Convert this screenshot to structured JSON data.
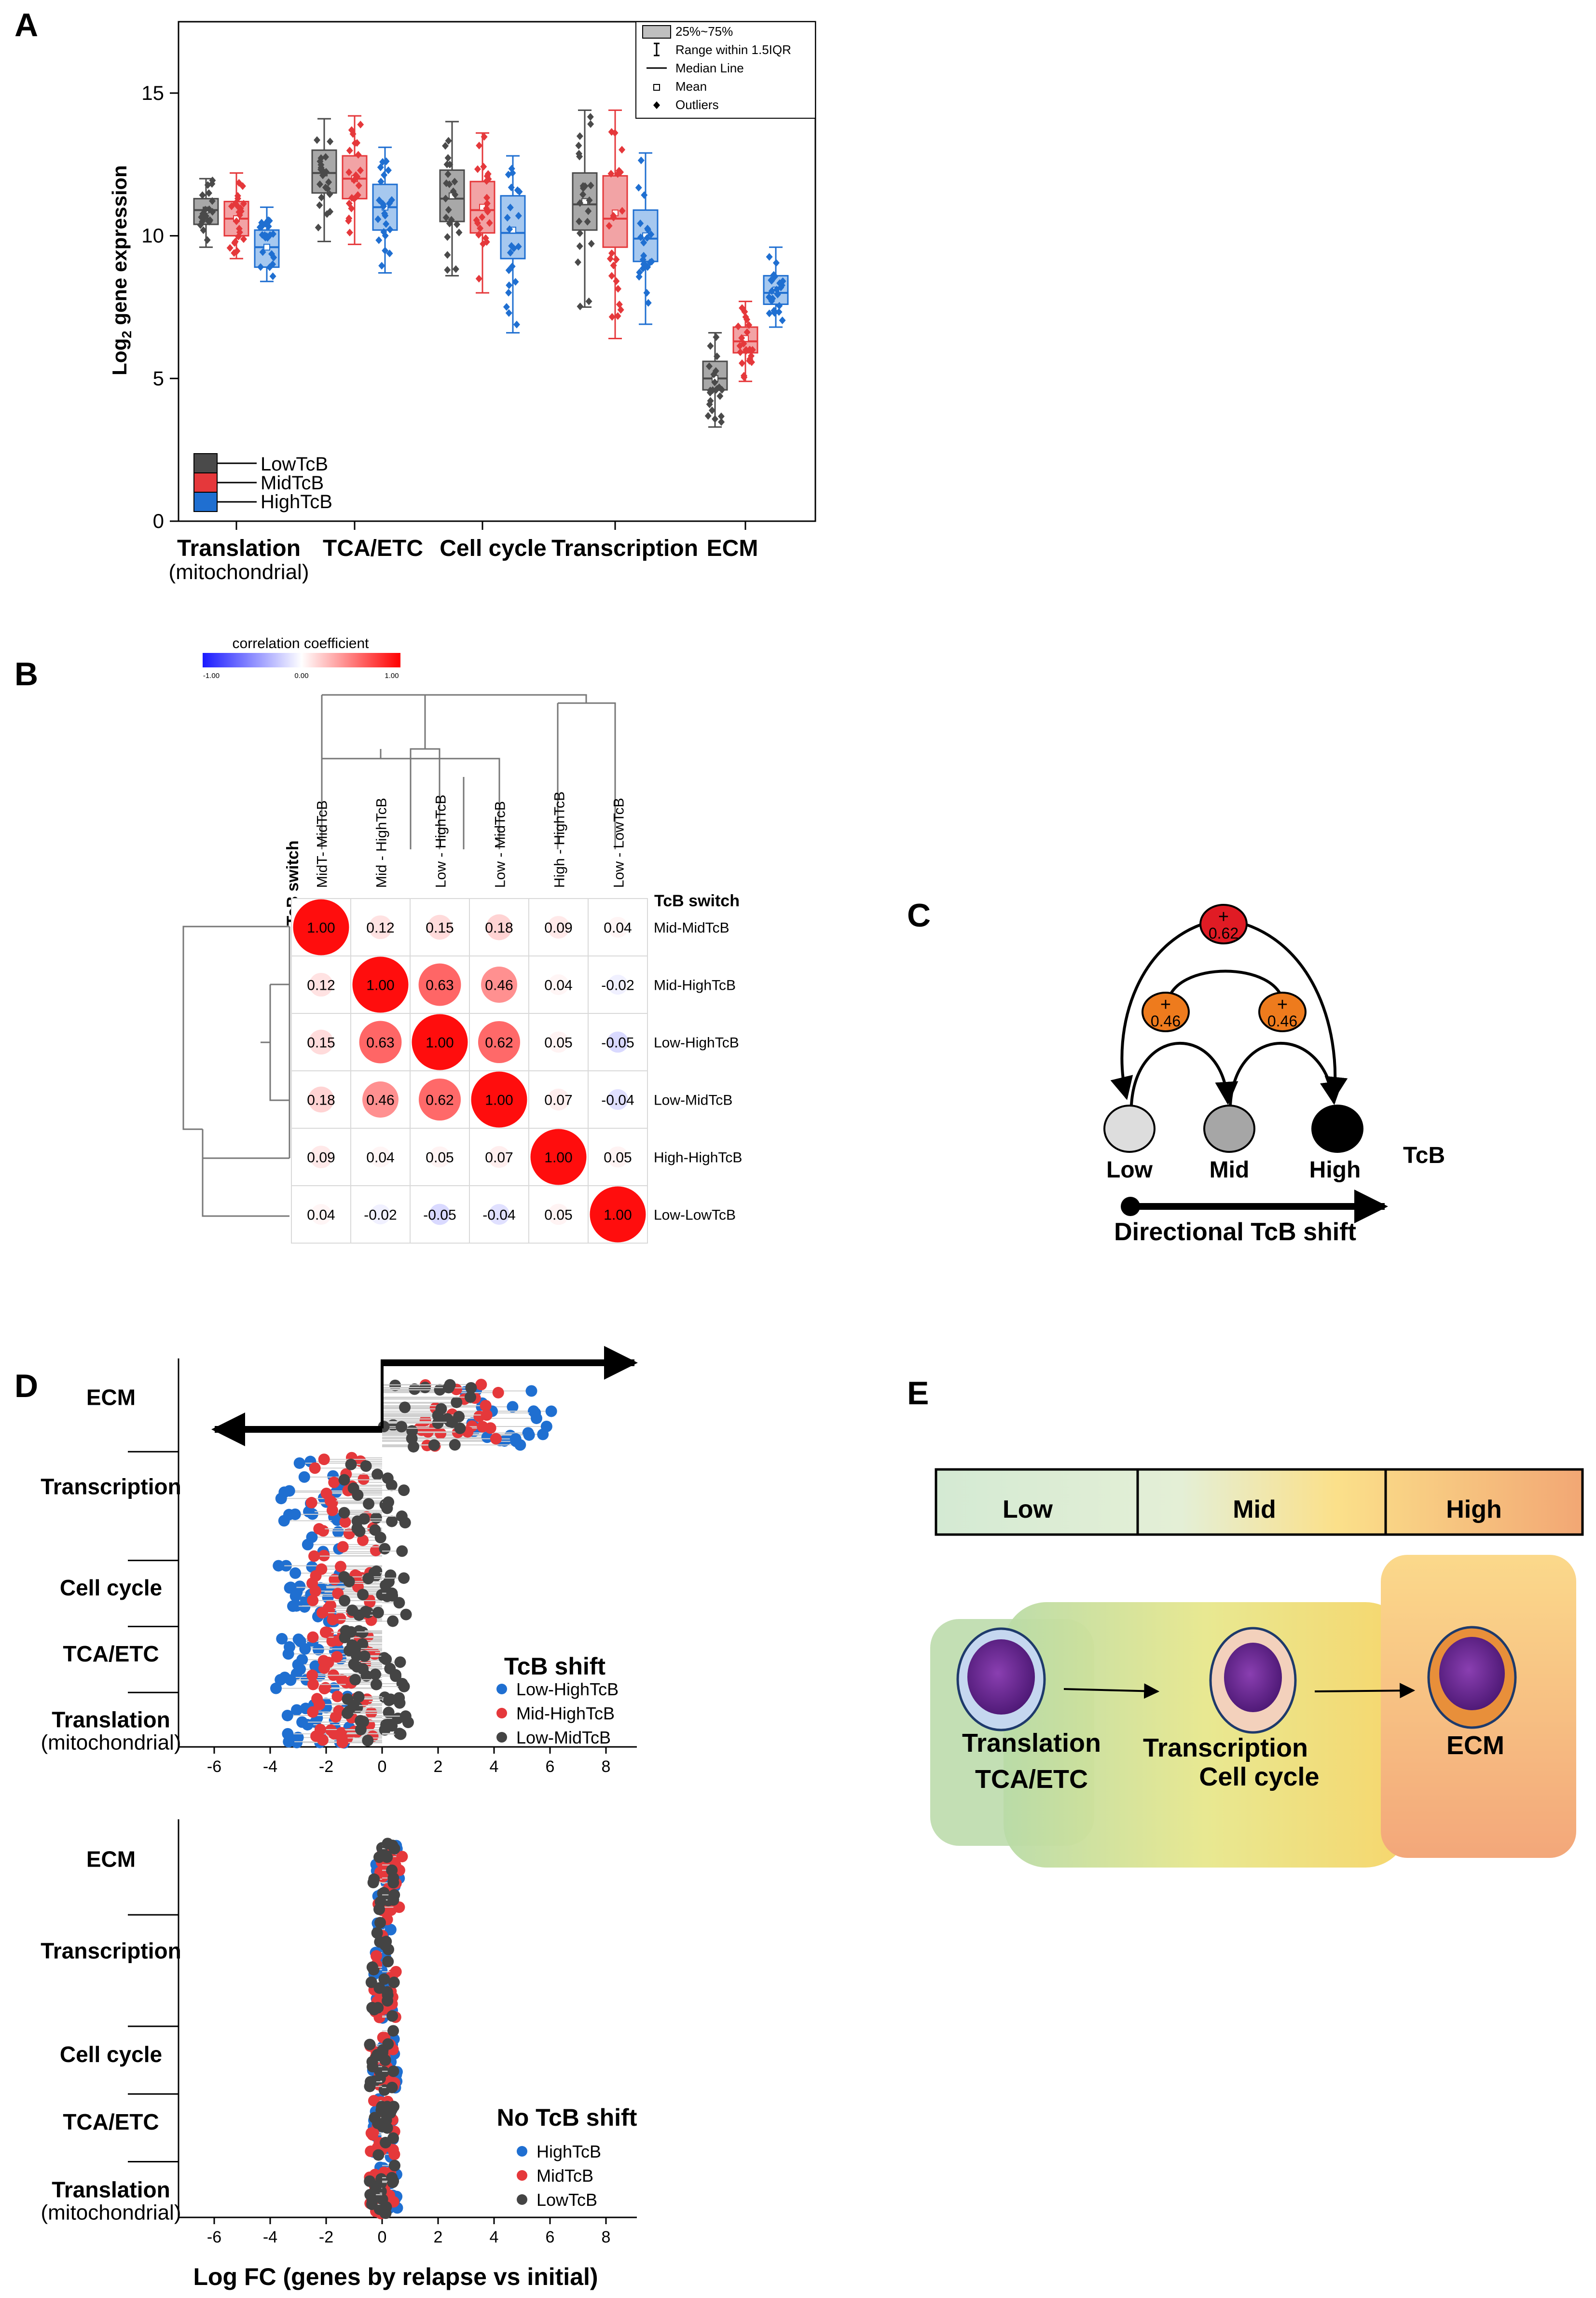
{
  "panels": {
    "a": {
      "letter": "A",
      "chart_data": {
        "type": "box",
        "ylabel": "Log2 gene expression",
        "ylabel_main": "Log",
        "ylabel_sub": "2",
        "ylabel_rest": " gene expression",
        "ylim": [
          0,
          17.5
        ],
        "yticks": [
          "0",
          "5",
          "10",
          "15"
        ],
        "ytick_values": [
          0,
          5,
          10,
          15
        ],
        "categories": [
          "Translation",
          "TCA/ETC",
          "Cell cycle",
          "Transcription",
          "ECM"
        ],
        "category_sublabel": "(mitochondrial)",
        "series": [
          {
            "name": "LowTcB",
            "color": "#4a4a4a",
            "fill": "#a8a8a8",
            "boxes": [
              {
                "q1": 10.4,
                "median": 10.9,
                "q3": 11.3,
                "mean": 10.9,
                "wlo": 9.6,
                "whi": 12.0
              },
              {
                "q1": 11.5,
                "median": 12.2,
                "q3": 13.0,
                "mean": 12.2,
                "wlo": 9.8,
                "whi": 14.1
              },
              {
                "q1": 10.5,
                "median": 11.3,
                "q3": 12.3,
                "mean": 11.4,
                "wlo": 8.6,
                "whi": 14.0
              },
              {
                "q1": 10.2,
                "median": 11.1,
                "q3": 12.2,
                "mean": 11.2,
                "wlo": 7.5,
                "whi": 14.4
              },
              {
                "q1": 4.6,
                "median": 5.0,
                "q3": 5.6,
                "mean": 5.0,
                "wlo": 3.3,
                "whi": 6.6
              }
            ]
          },
          {
            "name": "MidTcB",
            "color": "#e5383b",
            "fill": "#f2a3a5",
            "boxes": [
              {
                "q1": 10.0,
                "median": 10.6,
                "q3": 11.2,
                "mean": 10.6,
                "wlo": 9.2,
                "whi": 12.2
              },
              {
                "q1": 11.3,
                "median": 12.0,
                "q3": 12.8,
                "mean": 12.0,
                "wlo": 9.7,
                "whi": 14.2
              },
              {
                "q1": 10.1,
                "median": 10.9,
                "q3": 11.9,
                "mean": 11.0,
                "wlo": 8.0,
                "whi": 13.6
              },
              {
                "q1": 9.6,
                "median": 10.6,
                "q3": 12.1,
                "mean": 10.8,
                "wlo": 6.4,
                "whi": 14.4
              },
              {
                "q1": 5.9,
                "median": 6.3,
                "q3": 6.8,
                "mean": 6.4,
                "wlo": 4.9,
                "whi": 7.7
              }
            ]
          },
          {
            "name": "HighTcB",
            "color": "#1f6fd1",
            "fill": "#a6c8ef",
            "boxes": [
              {
                "q1": 8.9,
                "median": 9.6,
                "q3": 10.2,
                "mean": 9.6,
                "wlo": 8.4,
                "whi": 11.0
              },
              {
                "q1": 10.2,
                "median": 11.0,
                "q3": 11.8,
                "mean": 11.0,
                "wlo": 8.7,
                "whi": 13.1
              },
              {
                "q1": 9.2,
                "median": 10.1,
                "q3": 11.4,
                "mean": 10.2,
                "wlo": 6.6,
                "whi": 12.8
              },
              {
                "q1": 9.1,
                "median": 9.9,
                "q3": 10.9,
                "mean": 10.0,
                "wlo": 6.9,
                "whi": 12.9
              },
              {
                "q1": 7.6,
                "median": 8.0,
                "q3": 8.6,
                "mean": 8.1,
                "wlo": 6.8,
                "whi": 9.6
              }
            ]
          }
        ],
        "stat_legend": [
          "25%~75%",
          "Range within 1.5IQR",
          "Median Line",
          "Mean",
          "Outliers"
        ]
      }
    },
    "b": {
      "letter": "B",
      "scale_title": "correlation coefficient",
      "scale_ticks": [
        "-1.00",
        "0.00",
        "1.00"
      ],
      "header": "TcB switch",
      "col_labels": [
        "MidT- MidTcB",
        "Mid - HighTcB",
        "Low - HighTcB",
        "Low - MidTcB",
        "High - HighTcB",
        "Low - LowTcB"
      ],
      "row_labels": [
        "Mid-MidTcB",
        "Mid-HighTcB",
        "Low-HighTcB",
        "Low-MidTcB",
        "High-HighTcB",
        "Low-LowTcB"
      ],
      "chart_data": {
        "type": "heatmap",
        "title": "correlation coefficient",
        "range": [
          -1,
          1
        ],
        "rows": [
          "Mid-MidTcB",
          "Mid-HighTcB",
          "Low-HighTcB",
          "Low-MidTcB",
          "High-HighTcB",
          "Low-LowTcB"
        ],
        "columns": [
          "MidT- MidTcB",
          "Mid - HighTcB",
          "Low - HighTcB",
          "Low - MidTcB",
          "High - HighTcB",
          "Low - LowTcB"
        ],
        "values": [
          [
            1.0,
            0.12,
            0.15,
            0.18,
            0.09,
            0.04
          ],
          [
            0.12,
            1.0,
            0.63,
            0.46,
            0.04,
            -0.02
          ],
          [
            0.15,
            0.63,
            1.0,
            0.62,
            0.05,
            -0.05
          ],
          [
            0.18,
            0.46,
            0.62,
            1.0,
            0.07,
            -0.04
          ],
          [
            0.09,
            0.04,
            0.05,
            0.07,
            1.0,
            0.05
          ],
          [
            0.04,
            -0.02,
            -0.05,
            -0.04,
            0.05,
            1.0
          ]
        ]
      }
    },
    "c": {
      "letter": "C",
      "nodes": [
        "Low",
        "Mid",
        "High"
      ],
      "tcb_label": "TcB",
      "arrow_label": "Directional TcB shift",
      "top_value": "0.62",
      "left_value": "0.46",
      "right_value": "0.46",
      "plus": "+"
    },
    "d": {
      "letter": "D",
      "categories": [
        "ECM",
        "Transcription",
        "Cell cycle",
        "TCA/ETC",
        "Translation"
      ],
      "category_sublabel": "(mitochondrial)",
      "xticks": [
        "-6",
        "-4",
        "-2",
        "0",
        "2",
        "4",
        "6",
        "8"
      ],
      "xlabel": "Log FC (genes by relapse vs initial)",
      "chart_data": [
        {
          "type": "scatter",
          "title": "TcB shift",
          "xlim": [
            -7,
            9
          ],
          "xlabel": "Log FC (genes by relapse vs initial)",
          "series": [
            {
              "name": "Low-HighTcB",
              "color": "#1f6fd1",
              "center_by_category": {
                "ECM": 4.5,
                "Transcription": -2.6,
                "Cell cycle": -2.6,
                "TCA/ETC": -2.6,
                "Translation": -2.3
              }
            },
            {
              "name": "Mid-HighTcB",
              "color": "#e5383b",
              "center_by_category": {
                "ECM": 2.6,
                "Transcription": -1.4,
                "Cell cycle": -1.4,
                "TCA/ETC": -1.4,
                "Translation": -1.3
              }
            },
            {
              "name": "Low-MidTcB",
              "color": "#444444",
              "center_by_category": {
                "ECM": 1.6,
                "Transcription": -0.3,
                "Cell cycle": -0.3,
                "TCA/ETC": -0.2,
                "Translation": -0.1
              }
            }
          ]
        },
        {
          "type": "scatter",
          "title": "No TcB shift",
          "xlim": [
            -7,
            9
          ],
          "xlabel": "Log FC (genes by relapse vs initial)",
          "series": [
            {
              "name": "HighTcB",
              "color": "#1f6fd1",
              "center_by_category": {
                "ECM": 0.2,
                "Transcription": 0.1,
                "Cell cycle": 0.1,
                "TCA/ETC": 0.1,
                "Translation": 0.1
              }
            },
            {
              "name": "MidTcB",
              "color": "#e5383b",
              "center_by_category": {
                "ECM": 0.3,
                "Transcription": 0.1,
                "Cell cycle": 0.0,
                "TCA/ETC": 0.0,
                "Translation": 0.0
              }
            },
            {
              "name": "LowTcB",
              "color": "#444444",
              "center_by_category": {
                "ECM": 0.1,
                "Transcription": 0.0,
                "Cell cycle": 0.0,
                "TCA/ETC": 0.0,
                "Translation": 0.0
              }
            }
          ]
        }
      ]
    },
    "e": {
      "letter": "E",
      "bar_labels": [
        "Low",
        "Mid",
        "High"
      ],
      "stage1_line1": "Translation",
      "stage1_line2": "TCA/ETC",
      "stage2_line1": "Transcription",
      "stage2_line2": "Cell cycle",
      "stage3": "ECM"
    }
  },
  "colors": {
    "low": "#444444",
    "mid": "#e5383b",
    "high": "#1f6fd1",
    "node_orange": "#ee7b1d",
    "node_red": "#e01b24"
  }
}
